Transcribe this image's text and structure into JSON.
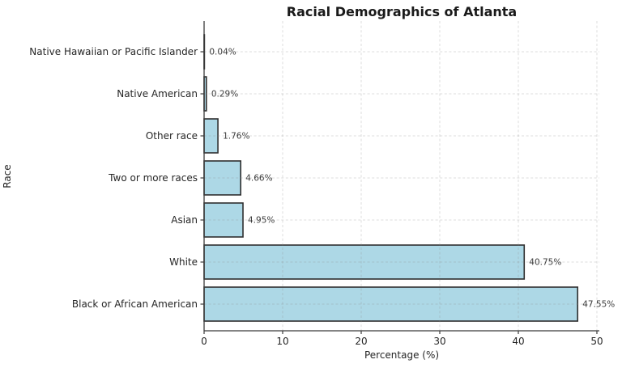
{
  "chart_data": {
    "type": "bar",
    "orientation": "horizontal",
    "title": "Racial Demographics of Atlanta",
    "xlabel": "Percentage (%)",
    "ylabel": "Race",
    "categories": [
      "Native Hawaiian or Pacific Islander",
      "Native American",
      "Other race",
      "Two or more races",
      "Asian",
      "White",
      "Black or African American"
    ],
    "values": [
      0.04,
      0.29,
      1.76,
      4.66,
      4.95,
      40.75,
      47.55
    ],
    "value_labels": [
      "0.04%",
      "0.29%",
      "1.76%",
      "4.66%",
      "4.95%",
      "40.75%",
      "47.55%"
    ],
    "x_ticks": [
      0,
      10,
      20,
      30,
      40,
      50
    ],
    "xlim": [
      0,
      50.3
    ],
    "grid": true,
    "grid_style": "dashed",
    "legend_position": "none",
    "colors": {
      "bar_fill": "#ADD8E6",
      "bar_edge": "#2f2f2f",
      "grid": "#8c8c8c",
      "spine": "#3c3c3c",
      "tick_text": "#262626",
      "category_text": "#262626",
      "value_label_text": "#3d3d3d",
      "title_text": "#1a1a1a",
      "background": "#ffffff"
    }
  }
}
